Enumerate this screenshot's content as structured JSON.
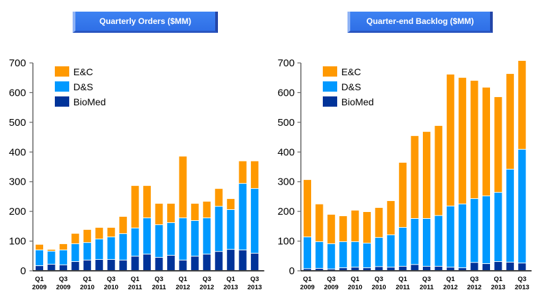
{
  "colors": {
    "E&C": "#FF9900",
    "D&S": "#0099FF",
    "BioMed": "#003399",
    "title_bg": "#3377EE"
  },
  "chart_data": [
    {
      "type": "bar",
      "stacked": true,
      "title": "Quarterly Orders ($MM)",
      "xlabel": "",
      "ylabel": "",
      "ylim": [
        0,
        700
      ],
      "yticks": [
        0,
        100,
        200,
        300,
        400,
        500,
        600,
        700
      ],
      "legend": [
        "E&C",
        "D&S",
        "BioMed"
      ],
      "legend_position": "top-left",
      "categories": [
        "Q1 2009",
        "Q2 2009",
        "Q3 2009",
        "Q4 2009",
        "Q1 2010",
        "Q2 2010",
        "Q3 2010",
        "Q4 2010",
        "Q1 2011",
        "Q2 2011",
        "Q3 2011",
        "Q4 2011",
        "Q1 2012",
        "Q2 2012",
        "Q3 2012",
        "Q4 2012",
        "Q1 2013",
        "Q2 2013",
        "Q3 2013"
      ],
      "tick_labels": [
        [
          "Q1",
          "2009"
        ],
        [
          "Q3",
          "2009"
        ],
        [
          "Q1",
          "2010"
        ],
        [
          "Q3",
          "2010"
        ],
        [
          "Q1",
          "2011"
        ],
        [
          "Q3",
          "2011"
        ],
        [
          "Q1",
          "2012"
        ],
        [
          "Q3",
          "2012"
        ],
        [
          "Q1",
          "2013"
        ],
        [
          "Q3",
          "2013"
        ]
      ],
      "series": [
        {
          "name": "BioMed",
          "values": [
            16,
            21,
            19,
            30,
            35,
            37,
            37,
            35,
            48,
            55,
            44,
            51,
            35,
            48,
            55,
            64,
            71,
            69,
            58
          ]
        },
        {
          "name": "D&S",
          "values": [
            53,
            44,
            50,
            60,
            59,
            69,
            76,
            89,
            95,
            122,
            110,
            110,
            142,
            120,
            122,
            152,
            134,
            224,
            218
          ]
        },
        {
          "name": "E&C",
          "values": [
            19,
            6,
            21,
            35,
            44,
            39,
            32,
            58,
            143,
            109,
            72,
            65,
            208,
            58,
            56,
            60,
            37,
            76,
            93
          ]
        }
      ],
      "totals": [
        88,
        71,
        90,
        125,
        138,
        145,
        145,
        182,
        286,
        286,
        226,
        226,
        385,
        226,
        233,
        276,
        242,
        369,
        369
      ]
    },
    {
      "type": "bar",
      "stacked": true,
      "title": "Quarter-end Backlog ($MM)",
      "xlabel": "",
      "ylabel": "",
      "ylim": [
        0,
        700
      ],
      "yticks": [
        0,
        100,
        200,
        300,
        400,
        500,
        600,
        700
      ],
      "legend": [
        "E&C",
        "D&S",
        "BioMed"
      ],
      "legend_position": "top-left",
      "categories": [
        "Q1 2009",
        "Q2 2009",
        "Q3 2009",
        "Q4 2009",
        "Q1 2010",
        "Q2 2010",
        "Q3 2010",
        "Q4 2010",
        "Q1 2011",
        "Q2 2011",
        "Q3 2011",
        "Q4 2011",
        "Q1 2012",
        "Q2 2012",
        "Q3 2012",
        "Q4 2012",
        "Q1 2013",
        "Q2 2013",
        "Q3 2013"
      ],
      "tick_labels": [
        [
          "Q1",
          "2009"
        ],
        [
          "Q3",
          "2009"
        ],
        [
          "Q1",
          "2010"
        ],
        [
          "Q3",
          "2010"
        ],
        [
          "Q1",
          "2011"
        ],
        [
          "Q3",
          "2011"
        ],
        [
          "Q1",
          "2012"
        ],
        [
          "Q3",
          "2012"
        ],
        [
          "Q1",
          "2013"
        ],
        [
          "Q3",
          "2013"
        ]
      ],
      "series": [
        {
          "name": "BioMed",
          "values": [
            6,
            7,
            5,
            9,
            11,
            9,
            13,
            11,
            14,
            20,
            14,
            14,
            11,
            9,
            27,
            23,
            30,
            28,
            25
          ]
        },
        {
          "name": "D&S",
          "values": [
            107,
            90,
            85,
            88,
            86,
            83,
            98,
            109,
            131,
            155,
            161,
            171,
            206,
            215,
            215,
            228,
            233,
            313,
            383
          ]
        },
        {
          "name": "E&C",
          "values": [
            193,
            127,
            99,
            87,
            106,
            106,
            101,
            115,
            219,
            279,
            293,
            303,
            444,
            426,
            398,
            366,
            322,
            322,
            299
          ]
        }
      ],
      "totals": [
        306,
        224,
        189,
        184,
        203,
        198,
        212,
        235,
        364,
        454,
        468,
        488,
        661,
        650,
        640,
        617,
        585,
        663,
        707
      ]
    }
  ]
}
